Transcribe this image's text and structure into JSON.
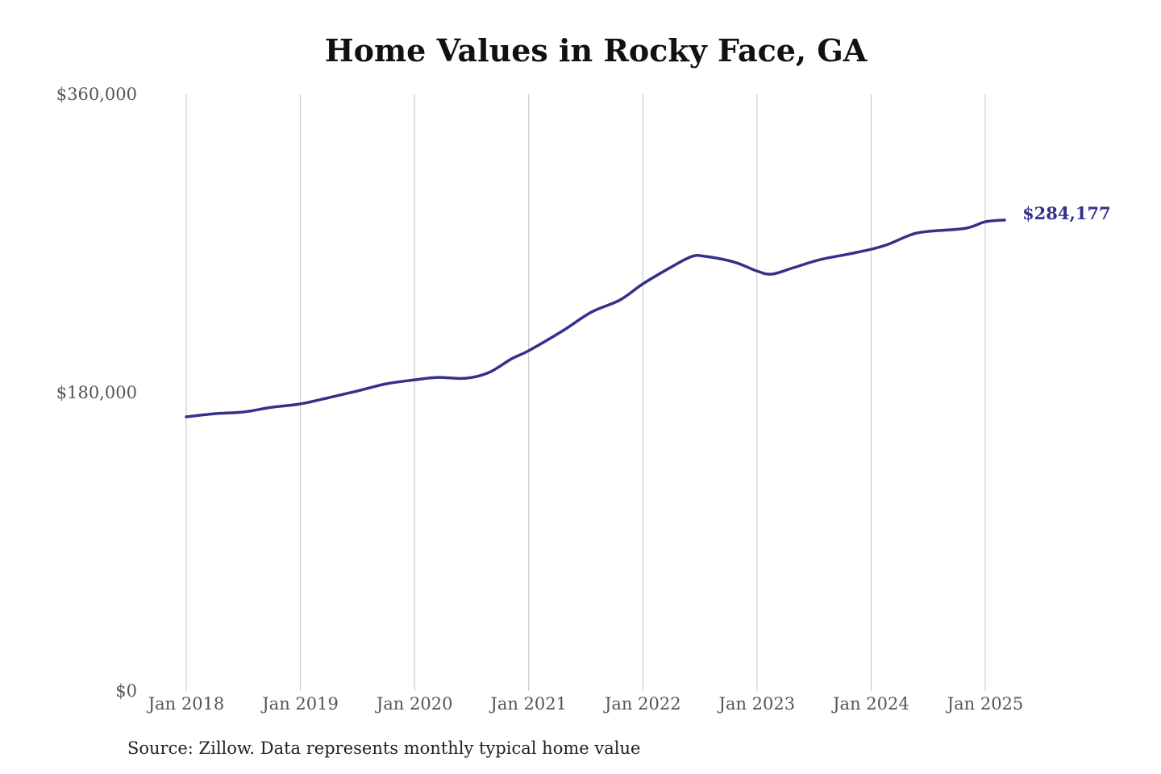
{
  "chart_data": {
    "type": "line",
    "title": "Home Values in Rocky Face, GA",
    "source": "Source: Zillow. Data represents monthly typical home value",
    "xlabel": "",
    "ylabel": "",
    "ylim": [
      0,
      360000
    ],
    "xlim": [
      2018.0,
      2025.17
    ],
    "y_ticks": [
      0,
      180000,
      360000
    ],
    "y_tick_labels": [
      "$0",
      "$180,000",
      "$360,000"
    ],
    "x_ticks": [
      2018,
      2019,
      2020,
      2021,
      2022,
      2023,
      2024,
      2025
    ],
    "x_tick_labels": [
      "Jan 2018",
      "Jan 2019",
      "Jan 2020",
      "Jan 2021",
      "Jan 2022",
      "Jan 2023",
      "Jan 2024",
      "Jan 2025"
    ],
    "grid": "vertical",
    "color": "#33318a",
    "end_label": "$284,177",
    "series": [
      {
        "name": "Typical home value",
        "x": [
          2018.0,
          2018.25,
          2018.5,
          2018.75,
          2019.0,
          2019.25,
          2019.5,
          2019.75,
          2020.0,
          2020.2,
          2020.45,
          2020.65,
          2020.85,
          2021.0,
          2021.3,
          2021.55,
          2021.8,
          2022.0,
          2022.25,
          2022.43,
          2022.55,
          2022.8,
          2023.0,
          2023.13,
          2023.32,
          2023.55,
          2023.8,
          2024.0,
          2024.15,
          2024.35,
          2024.5,
          2024.83,
          2025.0,
          2025.17
        ],
        "values": [
          165400,
          167300,
          168300,
          171200,
          173200,
          177000,
          181000,
          185300,
          187700,
          189200,
          188700,
          192100,
          200400,
          205300,
          217400,
          228600,
          235900,
          245600,
          255800,
          262200,
          262200,
          258800,
          253400,
          251500,
          255400,
          260200,
          263600,
          266500,
          269500,
          275300,
          277300,
          279200,
          283100,
          284177
        ]
      }
    ]
  }
}
